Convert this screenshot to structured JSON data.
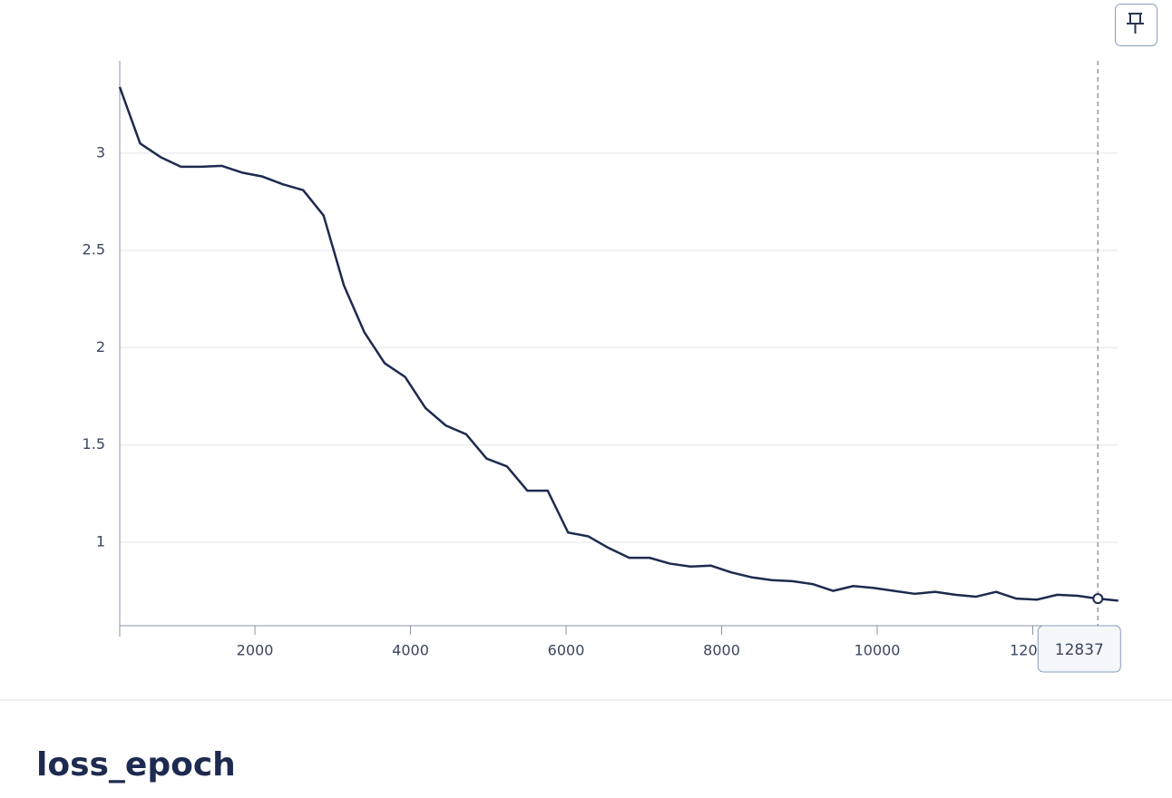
{
  "chart_data": {
    "type": "line",
    "title": "loss_epoch",
    "x": [
      262,
      524,
      786,
      1048,
      1310,
      1572,
      1834,
      2096,
      2358,
      2620,
      2882,
      3144,
      3406,
      3668,
      3930,
      4192,
      4454,
      4716,
      4978,
      5240,
      5502,
      5764,
      6026,
      6288,
      6550,
      6812,
      7074,
      7336,
      7598,
      7860,
      8122,
      8384,
      8646,
      8908,
      9170,
      9432,
      9694,
      9956,
      10218,
      10480,
      10742,
      11004,
      11266,
      11528,
      11790,
      12052,
      12314,
      12576,
      12837,
      13099
    ],
    "series": [
      {
        "color": "#1e2a4f",
        "values": [
          3.34,
          3.05,
          2.98,
          2.93,
          2.93,
          2.935,
          2.9,
          2.88,
          2.84,
          2.81,
          2.68,
          2.32,
          2.08,
          1.92,
          1.85,
          1.69,
          1.6,
          1.555,
          1.43,
          1.39,
          1.265,
          1.265,
          1.05,
          1.03,
          0.97,
          0.92,
          0.92,
          0.89,
          0.875,
          0.88,
          0.845,
          0.82,
          0.805,
          0.8,
          0.785,
          0.75,
          0.775,
          0.765,
          0.75,
          0.735,
          0.745,
          0.73,
          0.72,
          0.745,
          0.71,
          0.705,
          0.73,
          0.725,
          0.71,
          0.7
        ]
      }
    ],
    "xlim": [
      262,
      13090
    ],
    "xticks": [
      2000,
      4000,
      6000,
      8000,
      10000,
      12000
    ],
    "ylim": [
      0.571,
      3.475
    ],
    "yticks": [
      1,
      1.5,
      2,
      2.5,
      3
    ],
    "grid": true,
    "hover_x": 12837
  }
}
